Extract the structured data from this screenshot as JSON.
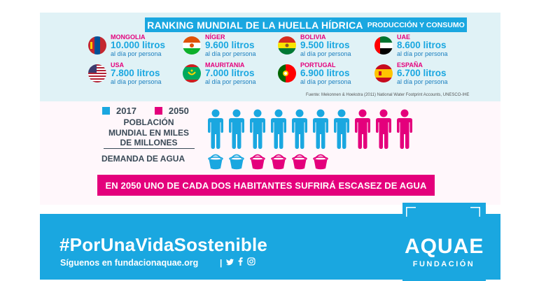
{
  "header": {
    "title": "RANKING MUNDIAL DE LA HUELLA HÍDRICA",
    "subtitle": "PRODUCCIÓN Y CONSUMO"
  },
  "countries": [
    {
      "name": "MONGOLIA",
      "value": "10.000 litros",
      "desc": "al día por persona",
      "flag": "mongolia-flag"
    },
    {
      "name": "NÍGER",
      "value": "9.600 litros",
      "desc": "al día por persona",
      "flag": "niger-flag"
    },
    {
      "name": "BOLIVIA",
      "value": "9.500 litros",
      "desc": "al día por persona",
      "flag": "bolivia-flag"
    },
    {
      "name": "UAE",
      "value": "8.600 litros",
      "desc": "al día por persona",
      "flag": "uae-flag"
    },
    {
      "name": "USA",
      "value": "7.800 litros",
      "desc": "al día por persona",
      "flag": "usa-flag"
    },
    {
      "name": "MAURITANIA",
      "value": "7.000 litros",
      "desc": "al día por persona",
      "flag": "mauritania-flag"
    },
    {
      "name": "PORTUGAL",
      "value": "6.900 litros",
      "desc": "al día por persona",
      "flag": "portugal-flag"
    },
    {
      "name": "ESPAÑA",
      "value": "6.700 litros",
      "desc": "al día por persona",
      "flag": "spain-flag"
    }
  ],
  "source": "Fuente: Mekonnen & Hoekstra (2011) National Water Footprint Accounts, UNESCO-IHE",
  "legend": {
    "year_a": "2017",
    "year_b": "2050"
  },
  "population": {
    "label": "POBLACIÓN MUNDIAL EN MILES DE MILLONES",
    "count_2017": 7,
    "count_2050_extra": 3
  },
  "water_demand": {
    "label": "DEMANDA DE AGUA",
    "count_2017": 2,
    "count_2050_extra": 4
  },
  "banner": "EN 2050 UNO DE CADA DOS HABITANTES SUFRIRÁ ESCASEZ DE AGUA",
  "footer": {
    "hashtag": "#PorUnaVidaSostenible",
    "follow_text": "Síguenos en fundacionaquae.org",
    "separator": "|",
    "social_icons": [
      "twitter-icon",
      "facebook-icon",
      "instagram-icon"
    ]
  },
  "logo": {
    "name": "AQUAE",
    "sub": "FUNDACIÓN"
  },
  "colors": {
    "blue": "#1aa7e0",
    "pink": "#e4007c",
    "panel": "#e0f2f6",
    "text_dark": "#3a4a57"
  }
}
